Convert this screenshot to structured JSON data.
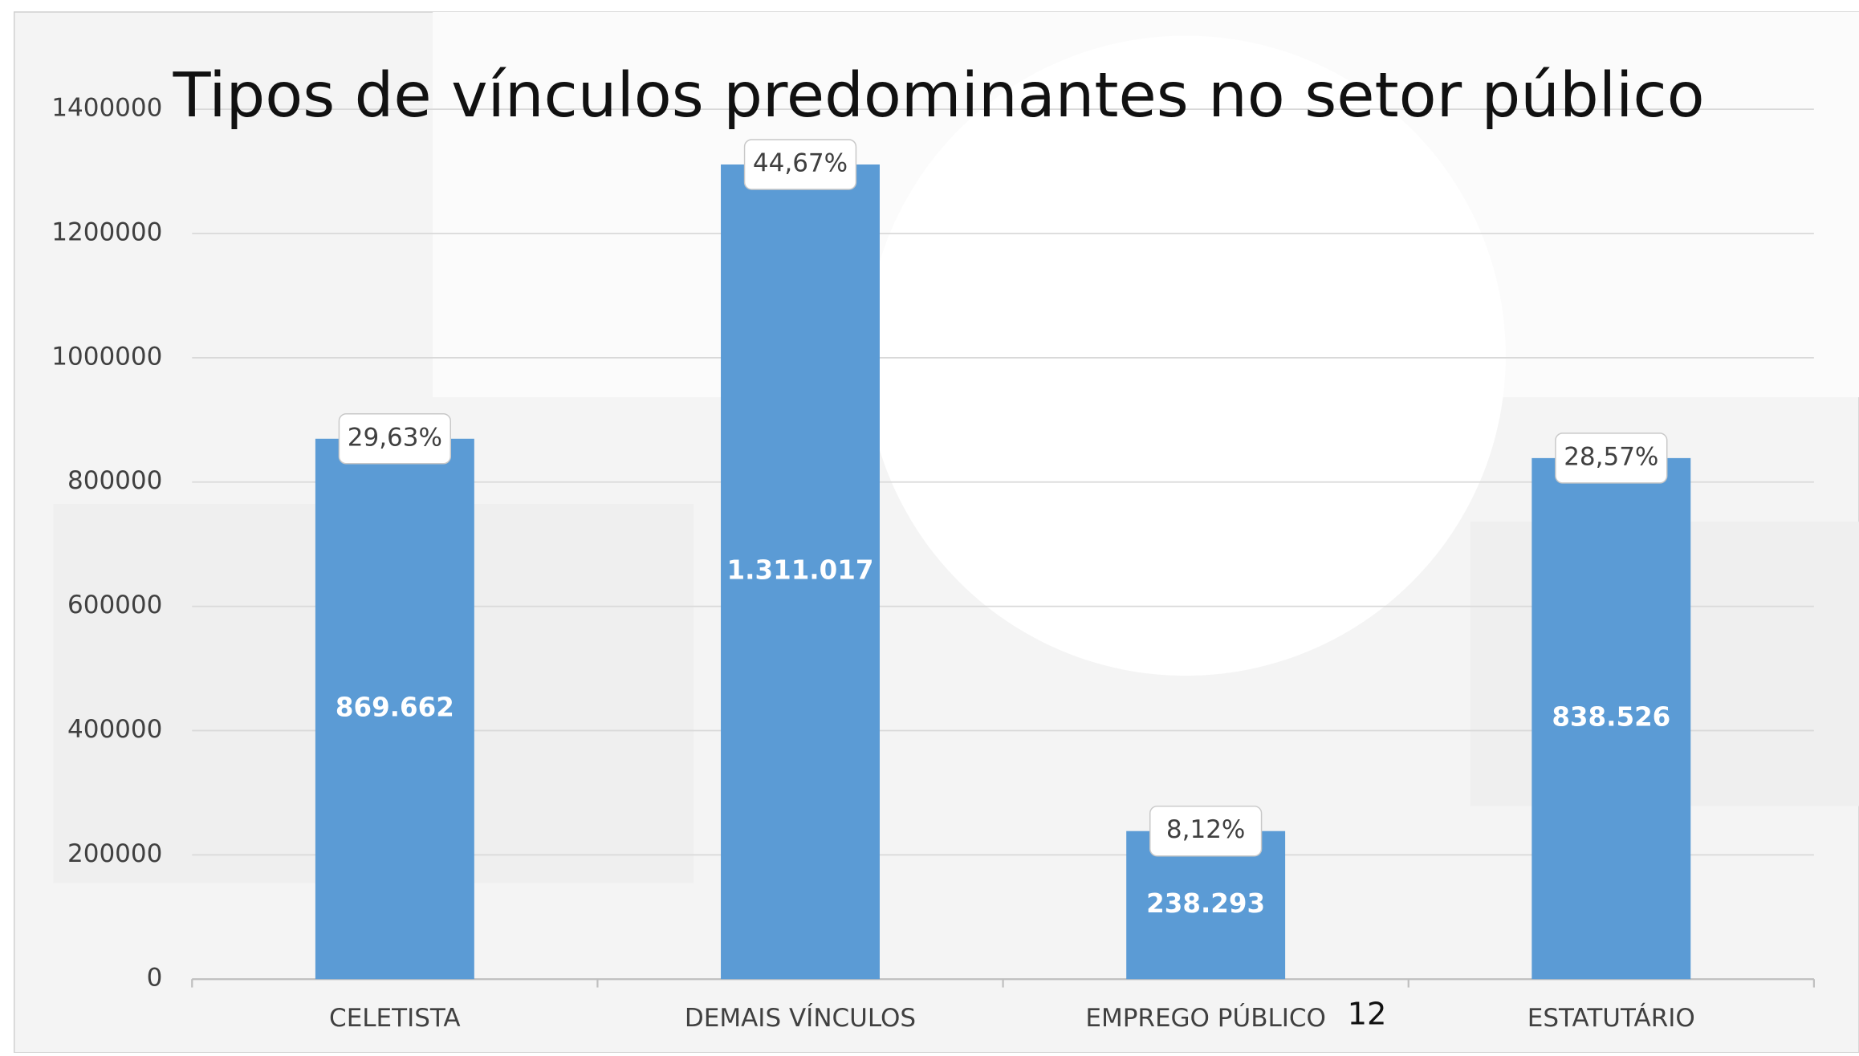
{
  "chart_data": {
    "type": "bar",
    "title": "Tipos de vínculos predominantes no setor público",
    "categories": [
      "CELETISTA",
      "DEMAIS VÍNCULOS",
      "EMPREGO PÚBLICO",
      "ESTATUTÁRIO"
    ],
    "values": [
      869662,
      1311017,
      238293,
      838526
    ],
    "value_labels": [
      "869.662",
      "1.311.017",
      "238.293",
      "838.526"
    ],
    "percent_labels": [
      "29,63%",
      "44,67%",
      "8,12%",
      "28,57%"
    ],
    "color": "#5b9bd5",
    "ylim": [
      0,
      1400000
    ],
    "yticks": [
      0,
      200000,
      400000,
      600000,
      800000,
      1000000,
      1200000,
      1400000
    ],
    "grid": true,
    "annotation": "12"
  }
}
